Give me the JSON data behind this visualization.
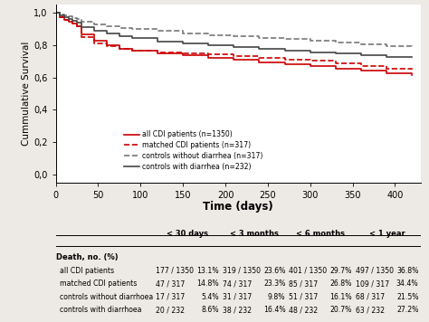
{
  "ylabel": "Cummulative Survival",
  "xlabel": "Time (days)",
  "xlim": [
    0,
    430
  ],
  "ylim": [
    -0.05,
    1.05
  ],
  "yticks": [
    0.0,
    0.2,
    0.4,
    0.6,
    0.8,
    1.0
  ],
  "ytick_labels": [
    "0,0",
    "0,2",
    "0,4",
    "0,6",
    "0,8",
    "1,0"
  ],
  "xticks": [
    0,
    50,
    100,
    150,
    200,
    250,
    300,
    350,
    400
  ],
  "curves": {
    "all_CDI": {
      "label": "all CDI patients (n=1350)",
      "color": "#cc0000",
      "linestyle": "-",
      "lw": 1.2,
      "points_x": [
        0,
        5,
        10,
        15,
        20,
        25,
        30,
        45,
        60,
        75,
        90,
        120,
        150,
        180,
        210,
        240,
        270,
        300,
        330,
        360,
        390,
        420
      ],
      "points_y": [
        1.0,
        0.974,
        0.954,
        0.944,
        0.934,
        0.918,
        0.869,
        0.828,
        0.8,
        0.78,
        0.764,
        0.75,
        0.738,
        0.72,
        0.71,
        0.695,
        0.683,
        0.672,
        0.655,
        0.643,
        0.625,
        0.614
      ]
    },
    "matched_CDI": {
      "label": "matched CDI patients (n=317)",
      "color": "#cc0000",
      "linestyle": "--",
      "lw": 1.2,
      "points_x": [
        0,
        5,
        10,
        15,
        20,
        25,
        30,
        45,
        60,
        75,
        90,
        120,
        150,
        180,
        210,
        240,
        270,
        300,
        330,
        360,
        390,
        420
      ],
      "points_y": [
        1.0,
        0.974,
        0.954,
        0.944,
        0.934,
        0.918,
        0.852,
        0.812,
        0.793,
        0.778,
        0.767,
        0.757,
        0.75,
        0.742,
        0.733,
        0.722,
        0.712,
        0.703,
        0.685,
        0.673,
        0.656,
        0.648
      ]
    },
    "ctrl_no_diarrhea": {
      "label": "controls without diarrhea (n=317)",
      "color": "#777777",
      "linestyle": "--",
      "lw": 1.2,
      "points_x": [
        0,
        5,
        10,
        15,
        20,
        25,
        30,
        45,
        60,
        75,
        90,
        120,
        150,
        180,
        210,
        240,
        270,
        300,
        330,
        360,
        390,
        420
      ],
      "points_y": [
        1.0,
        0.99,
        0.984,
        0.978,
        0.97,
        0.962,
        0.946,
        0.93,
        0.916,
        0.906,
        0.9,
        0.889,
        0.875,
        0.862,
        0.855,
        0.845,
        0.837,
        0.827,
        0.818,
        0.808,
        0.796,
        0.784
      ]
    },
    "ctrl_diarrhea": {
      "label": "controls with diarrhea (n=232)",
      "color": "#444444",
      "linestyle": "-",
      "lw": 1.2,
      "points_x": [
        0,
        5,
        10,
        15,
        20,
        25,
        30,
        45,
        60,
        75,
        90,
        120,
        150,
        180,
        210,
        240,
        270,
        300,
        330,
        360,
        390,
        420
      ],
      "points_y": [
        1.0,
        0.987,
        0.976,
        0.963,
        0.95,
        0.939,
        0.914,
        0.888,
        0.873,
        0.858,
        0.845,
        0.824,
        0.81,
        0.801,
        0.791,
        0.78,
        0.767,
        0.757,
        0.747,
        0.737,
        0.729,
        0.724
      ]
    }
  },
  "legend_labels": [
    "all CDI patients (n=1350)",
    "matched CDI patients (n=317)",
    "controls without diarrhea (n=317)",
    "controls with diarrhea (n=232)"
  ],
  "legend_colors": [
    "#cc0000",
    "#cc0000",
    "#777777",
    "#444444"
  ],
  "legend_linestyles": [
    "-",
    "--",
    "--",
    "-"
  ],
  "table_col_headers": [
    "< 30 days",
    "< 3 months",
    "< 6 months",
    "< 1 year"
  ],
  "table_section_header": "Death, no. (%)",
  "table_rows": [
    [
      "all CDI patients",
      "177 / 1350",
      "13.1%",
      "319 / 1350",
      "23.6%",
      "401 / 1350",
      "29.7%",
      "497 / 1350",
      "36.8%"
    ],
    [
      "matched CDI patients",
      "47 / 317",
      "14.8%",
      "74 / 317",
      "23.3%",
      "85 / 317",
      "26.8%",
      "109 / 317",
      "34.4%"
    ],
    [
      "controls without diarrhoea",
      "17 / 317",
      "5.4%",
      "31 / 317",
      "9.8%",
      "51 / 317",
      "16.1%",
      "68 / 317",
      "21.5%"
    ],
    [
      "controls with diarrhoea",
      "20 / 232",
      "8.6%",
      "38 / 232",
      "16.4%",
      "48 / 232",
      "20.7%",
      "63 / 232",
      "27.2%"
    ]
  ],
  "background_color": "#ede9e4",
  "plot_bg_color": "#ffffff"
}
